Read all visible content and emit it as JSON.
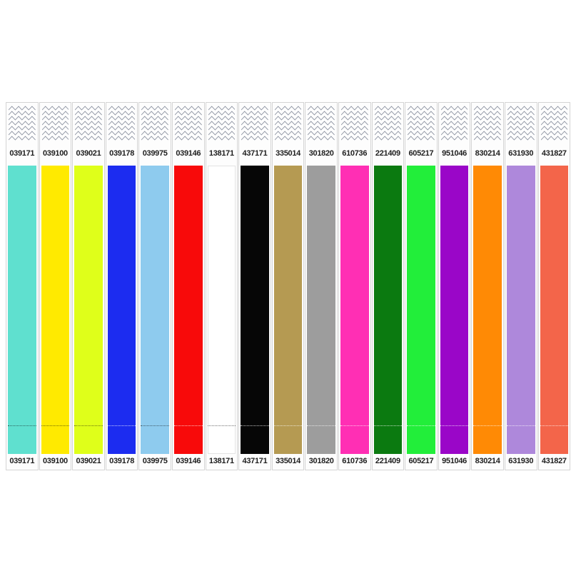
{
  "wristbands": [
    {
      "top_number": "039171",
      "bottom_number": "039171",
      "color": "#5fe0cf"
    },
    {
      "top_number": "039100",
      "bottom_number": "039100",
      "color": "#ffea00"
    },
    {
      "top_number": "039021",
      "bottom_number": "039021",
      "color": "#dfff1a"
    },
    {
      "top_number": "039178",
      "bottom_number": "039178",
      "color": "#1c2cf0"
    },
    {
      "top_number": "039975",
      "bottom_number": "039975",
      "color": "#8ecbee"
    },
    {
      "top_number": "039146",
      "bottom_number": "039146",
      "color": "#f80a0a"
    },
    {
      "top_number": "138171",
      "bottom_number": "138171",
      "color": "#ffffff"
    },
    {
      "top_number": "437171",
      "bottom_number": "437171",
      "color": "#060606"
    },
    {
      "top_number": "335014",
      "bottom_number": "335014",
      "color": "#b59a52"
    },
    {
      "top_number": "301820",
      "bottom_number": "301820",
      "color": "#9d9d9d"
    },
    {
      "top_number": "610736",
      "bottom_number": "610736",
      "color": "#ff2fb4"
    },
    {
      "top_number": "221409",
      "bottom_number": "221409",
      "color": "#0b7a10"
    },
    {
      "top_number": "605217",
      "bottom_number": "605217",
      "color": "#22ee3a"
    },
    {
      "top_number": "951046",
      "bottom_number": "951046",
      "color": "#9a06c8"
    },
    {
      "top_number": "830214",
      "bottom_number": "830214",
      "color": "#ff8a05"
    },
    {
      "top_number": "631930",
      "bottom_number": "631930",
      "color": "#ae88db"
    },
    {
      "top_number": "431827",
      "bottom_number": "431827",
      "color": "#f3654a"
    }
  ]
}
